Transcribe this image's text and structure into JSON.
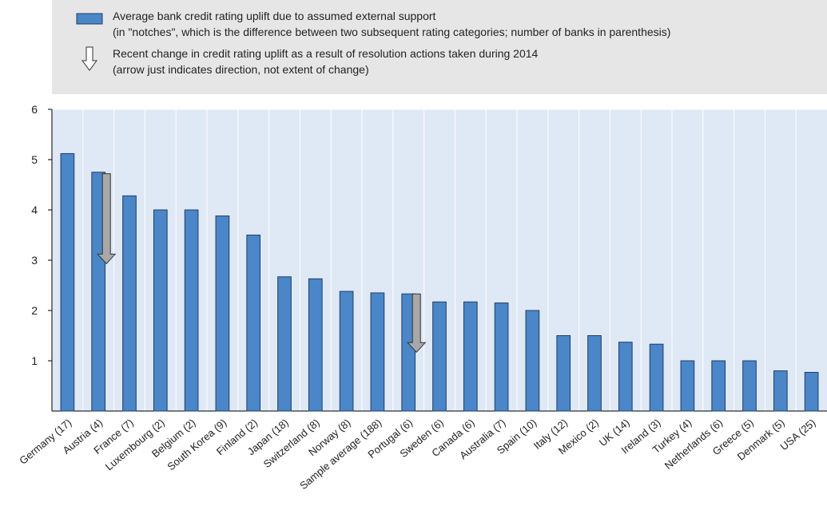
{
  "legend": {
    "bar_line1": "Average bank credit rating uplift due to assumed external support",
    "bar_line2": "(in \"notches\", which is the difference between two subsequent rating categories; number of banks in parenthesis)",
    "arrow_line1": "Recent change in credit rating uplift as a result of resolution actions taken during 2014",
    "arrow_line2": "(arrow just indicates direction, not extent of change)"
  },
  "colors": {
    "bar": "#4a86c8",
    "bar_stroke": "#1f3f66",
    "plot_bg": "#dfe8f5",
    "arrow_fill": "#a8a8a8"
  },
  "chart_data": {
    "type": "bar",
    "categories": [
      "Germany (17)",
      "Austria (4)",
      "France (7)",
      "Luxembourg (2)",
      "Belgium (2)",
      "South Korea (9)",
      "Finland (2)",
      "Japan (18)",
      "Switzerland (8)",
      "Norway (8)",
      "Sample average (188)",
      "Portugal (6)",
      "Sweden (6)",
      "Canada (6)",
      "Australia (7)",
      "Spain (10)",
      "Italy (12)",
      "Mexico (2)",
      "UK (14)",
      "Ireland (3)",
      "Turkey (4)",
      "Netherlands (6)",
      "Greece (5)",
      "Denmark (5)",
      "USA (25)"
    ],
    "values": [
      5.12,
      4.75,
      4.28,
      4.0,
      4.0,
      3.88,
      3.5,
      2.67,
      2.63,
      2.38,
      2.35,
      2.33,
      2.17,
      2.17,
      2.15,
      2.0,
      1.5,
      1.5,
      1.37,
      1.33,
      1.0,
      1.0,
      1.0,
      0.8,
      0.77
    ],
    "arrows": [
      {
        "category": "Austria (4)",
        "from": 4.72,
        "to": 2.93
      },
      {
        "category": "Portugal (6)",
        "from": 2.33,
        "to": 1.17
      }
    ],
    "ylim": [
      0,
      6
    ],
    "yticks": [
      1,
      2,
      3,
      4,
      5,
      6
    ],
    "xlabel": "",
    "ylabel": "",
    "grid": "vertical"
  }
}
